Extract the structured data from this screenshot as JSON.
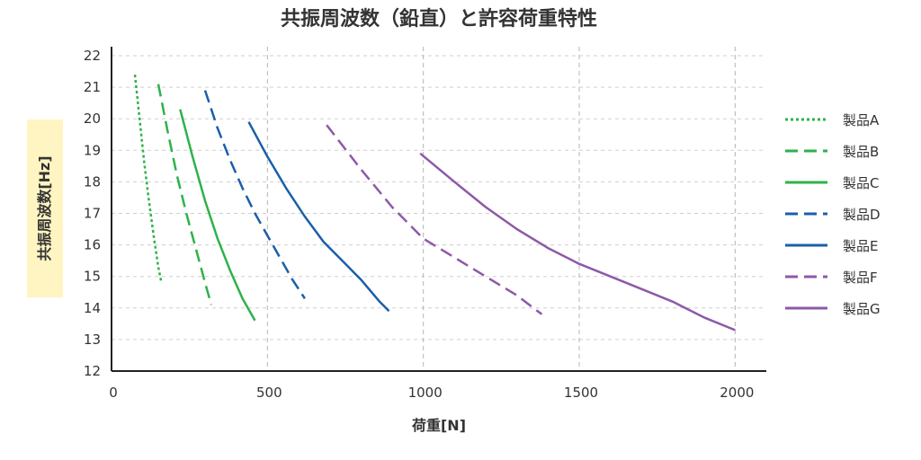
{
  "chart_data": {
    "type": "line",
    "title": "共振周波数（鉛直）と許容荷重特性",
    "xlabel": "荷重[N]",
    "ylabel": "共振周波数[Hz]",
    "xlim": [
      0,
      2100
    ],
    "ylim": [
      12,
      22
    ],
    "xticks": [
      0,
      500,
      1000,
      1500,
      2000
    ],
    "yticks": [
      12,
      13,
      14,
      15,
      16,
      17,
      18,
      19,
      20,
      21,
      22
    ],
    "grid": {
      "x": "dashed",
      "y": "dashed"
    },
    "legend_position": "right",
    "series": [
      {
        "name": "製品A",
        "color": "#2eb24a",
        "dash": "dotted",
        "x": [
          75,
          90,
          105,
          120,
          135,
          150,
          160
        ],
        "y": [
          21.4,
          20.0,
          18.6,
          17.4,
          16.3,
          15.3,
          14.8
        ]
      },
      {
        "name": "製品B",
        "color": "#2eb24a",
        "dash": "dashed",
        "x": [
          150,
          180,
          210,
          240,
          270,
          300,
          320
        ],
        "y": [
          21.1,
          19.6,
          18.2,
          17.0,
          15.9,
          14.8,
          14.1
        ]
      },
      {
        "name": "製品C",
        "color": "#2eb24a",
        "dash": "solid",
        "x": [
          220,
          260,
          300,
          340,
          380,
          420,
          460
        ],
        "y": [
          20.3,
          18.8,
          17.4,
          16.2,
          15.2,
          14.3,
          13.6
        ]
      },
      {
        "name": "製品D",
        "color": "#1a5fa8",
        "dash": "dashed",
        "x": [
          300,
          340,
          380,
          420,
          460,
          500,
          540,
          580,
          620
        ],
        "y": [
          20.9,
          19.7,
          18.7,
          17.8,
          17.0,
          16.3,
          15.6,
          14.9,
          14.3
        ]
      },
      {
        "name": "製品E",
        "color": "#1a5fa8",
        "dash": "solid",
        "x": [
          440,
          500,
          560,
          620,
          680,
          740,
          800,
          860,
          890
        ],
        "y": [
          19.9,
          18.8,
          17.8,
          16.9,
          16.1,
          15.5,
          14.9,
          14.2,
          13.9
        ]
      },
      {
        "name": "製品F",
        "color": "#8e59a8",
        "dash": "dashed",
        "x": [
          690,
          800,
          900,
          1000,
          1100,
          1200,
          1300,
          1380
        ],
        "y": [
          19.8,
          18.4,
          17.2,
          16.2,
          15.6,
          15.0,
          14.4,
          13.8
        ]
      },
      {
        "name": "製品G",
        "color": "#8e59a8",
        "dash": "solid",
        "x": [
          990,
          1100,
          1200,
          1300,
          1400,
          1500,
          1600,
          1700,
          1800,
          1900,
          2000
        ],
        "y": [
          18.9,
          18.0,
          17.2,
          16.5,
          15.9,
          15.4,
          15.0,
          14.6,
          14.2,
          13.7,
          13.3
        ]
      }
    ]
  }
}
